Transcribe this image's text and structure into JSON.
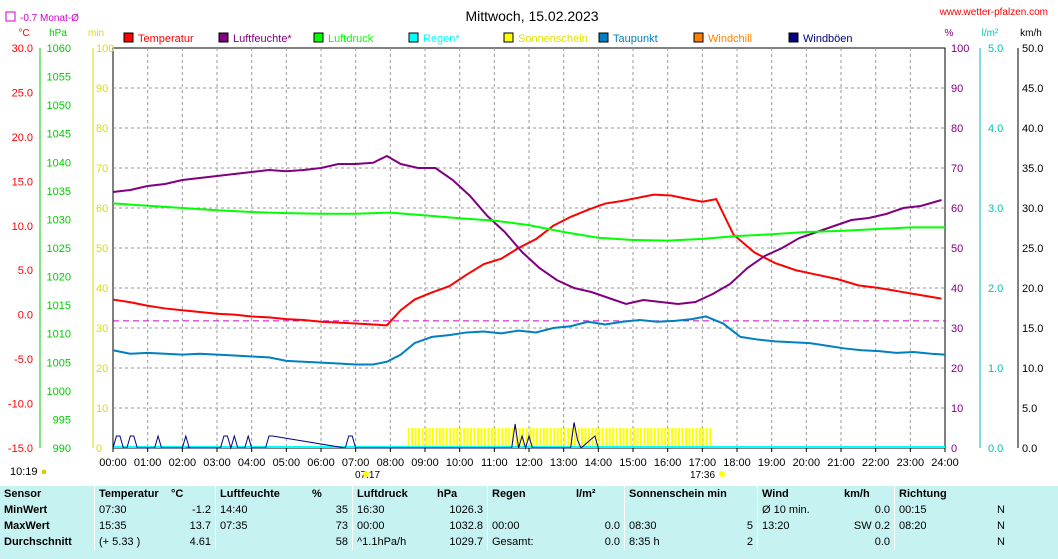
{
  "header": {
    "title": "Mittwoch, 15.02.2023",
    "site": "www.wetter-pfalzen.com",
    "monthavg": "-0.7 Monat-Ø"
  },
  "units": {
    "temp": "°C",
    "pressure": "hPa",
    "sun": "min",
    "percent": "%",
    "rain": "l/m²",
    "wind": "km/h"
  },
  "legend": [
    {
      "label": "Temperatur",
      "color": "#ff0000"
    },
    {
      "label": "Luftfeuchte*",
      "color": "#800080"
    },
    {
      "label": "Luftdruck",
      "color": "#00ff00"
    },
    {
      "label": "Regen*",
      "color": "#00ffff"
    },
    {
      "label": "Sonnenschein",
      "color": "#ffff00"
    },
    {
      "label": "Taupunkt",
      "color": "#0080c0"
    },
    {
      "label": "Windchill",
      "color": "#ff8000"
    },
    {
      "label": "Windböen",
      "color": "#000080"
    }
  ],
  "time_labels": {
    "sunrise": "07:17",
    "sunset": "17:36",
    "clock": "10:19"
  },
  "chart_data": {
    "type": "line",
    "x_ticks": [
      "00:00",
      "01:00",
      "02:00",
      "03:00",
      "04:00",
      "05:00",
      "06:00",
      "07:00",
      "08:00",
      "09:00",
      "10:00",
      "11:00",
      "12:00",
      "13:00",
      "14:00",
      "15:00",
      "16:00",
      "17:00",
      "18:00",
      "19:00",
      "20:00",
      "21:00",
      "22:00",
      "23:00",
      "24:00"
    ],
    "xlim": [
      0,
      24
    ],
    "axes": {
      "temp": {
        "ylim": [
          -15,
          30
        ],
        "ticks": [
          "30.0",
          "25.0",
          "20.0",
          "15.0",
          "10.0",
          "5.0",
          "0.0",
          "-5.0",
          "-10.0",
          "-15.0"
        ],
        "color": "#ff0000"
      },
      "pressure": {
        "ylim": [
          990,
          1060
        ],
        "ticks": [
          "1060",
          "1055",
          "1050",
          "1045",
          "1040",
          "1035",
          "1030",
          "1025",
          "1020",
          "1015",
          "1010",
          "1005",
          "1000",
          "995",
          "990"
        ],
        "color": "#00cc00"
      },
      "sun": {
        "ylim": [
          0,
          100
        ],
        "ticks": [
          "100",
          "90",
          "80",
          "70",
          "60",
          "50",
          "40",
          "30",
          "20",
          "10",
          "0"
        ],
        "color": "#ffff00"
      },
      "humidity": {
        "ylim": [
          0,
          100
        ],
        "ticks": [
          "100",
          "90",
          "80",
          "70",
          "60",
          "50",
          "40",
          "30",
          "20",
          "10",
          "0"
        ],
        "color": "#800080"
      },
      "rain": {
        "ylim": [
          0,
          5
        ],
        "ticks": [
          "5.0",
          "4.0",
          "3.0",
          "2.0",
          "1.0",
          "0.0"
        ],
        "color": "#00c0c0"
      },
      "wind": {
        "ylim": [
          0,
          50
        ],
        "ticks": [
          "50.0",
          "45.0",
          "40.0",
          "35.0",
          "30.0",
          "25.0",
          "20.0",
          "15.0",
          "10.0",
          "5.0",
          "0.0"
        ],
        "color": "#000000"
      }
    },
    "monthly_avg_temp": -0.7,
    "series": [
      {
        "name": "Temperatur",
        "axis": "temp",
        "color": "#ff0000",
        "x": [
          0,
          0.5,
          1,
          1.5,
          2,
          2.5,
          3,
          3.5,
          4,
          4.5,
          5,
          5.5,
          6,
          6.5,
          7,
          7.5,
          7.9,
          8.3,
          8.7,
          9.2,
          9.7,
          10.2,
          10.7,
          11.2,
          11.7,
          12.2,
          12.7,
          13.2,
          13.7,
          14.2,
          14.7,
          15.2,
          15.6,
          16.1,
          16.6,
          17,
          17.4,
          17.9,
          18.5,
          19.1,
          19.7,
          20.3,
          20.9,
          21.5,
          22.1,
          22.7,
          23.3,
          23.9
        ],
        "y": [
          1.7,
          1.4,
          1.0,
          0.7,
          0.5,
          0.3,
          0.1,
          0.0,
          -0.2,
          -0.3,
          -0.5,
          -0.6,
          -0.8,
          -0.9,
          -1.0,
          -1.1,
          -1.2,
          0.5,
          1.7,
          2.5,
          3.2,
          4.5,
          5.7,
          6.3,
          7.5,
          8.5,
          10.0,
          11.0,
          11.8,
          12.5,
          12.8,
          13.2,
          13.5,
          13.4,
          13.0,
          12.7,
          13.0,
          9.0,
          7.0,
          5.8,
          5.0,
          4.5,
          4.0,
          3.3,
          3.0,
          2.6,
          2.2,
          1.8
        ]
      },
      {
        "name": "Luftfeuchte",
        "axis": "humidity",
        "color": "#800080",
        "x": [
          0,
          0.5,
          1,
          1.5,
          2,
          2.5,
          3,
          3.5,
          4,
          4.5,
          5,
          5.5,
          6,
          6.5,
          7,
          7.5,
          7.9,
          8.3,
          8.8,
          9.3,
          9.8,
          10.3,
          10.8,
          11.3,
          11.8,
          12.3,
          12.8,
          13.3,
          13.8,
          14.3,
          14.8,
          15.3,
          15.8,
          16.3,
          16.8,
          17.3,
          17.8,
          18.3,
          18.8,
          19.3,
          19.8,
          20.3,
          20.8,
          21.3,
          21.8,
          22.3,
          22.8,
          23.3,
          23.9
        ],
        "y": [
          64,
          64.5,
          65.5,
          66,
          67,
          67.5,
          68,
          68.5,
          69,
          69.5,
          69.2,
          69.5,
          70,
          71,
          71,
          71.3,
          73,
          71,
          70,
          70,
          67,
          63,
          58,
          54,
          49,
          45,
          42,
          40,
          39,
          37.5,
          36,
          37,
          36.5,
          36,
          36.5,
          38.5,
          41,
          45,
          48,
          50,
          52.5,
          54,
          55.5,
          57,
          57.5,
          58.5,
          60,
          60.5,
          62
        ]
      },
      {
        "name": "Luftdruck",
        "axis": "pressure",
        "color": "#00ff00",
        "x": [
          0,
          1,
          2,
          3,
          4,
          5,
          6,
          7,
          8,
          9,
          10,
          11,
          12,
          13,
          14,
          15,
          16,
          17,
          18,
          19,
          20,
          21,
          22,
          23,
          24
        ],
        "y": [
          1032.8,
          1032.4,
          1032.0,
          1031.6,
          1031.3,
          1031.1,
          1031.0,
          1031.0,
          1031.2,
          1030.7,
          1030.2,
          1029.8,
          1029.0,
          1027.8,
          1026.8,
          1026.4,
          1026.3,
          1026.6,
          1027.1,
          1027.4,
          1027.8,
          1028.0,
          1028.3,
          1028.6,
          1028.6
        ]
      },
      {
        "name": "Taupunkt",
        "axis": "temp",
        "color": "#0080c0",
        "x": [
          0,
          0.5,
          1,
          1.5,
          2,
          2.5,
          3,
          3.5,
          4,
          4.5,
          5,
          5.5,
          6,
          6.5,
          7,
          7.5,
          7.9,
          8.3,
          8.7,
          9.2,
          9.7,
          10.2,
          10.7,
          11.2,
          11.7,
          12.2,
          12.7,
          13.2,
          13.7,
          14.2,
          14.7,
          15.2,
          15.7,
          16.2,
          16.7,
          17.1,
          17.6,
          18.1,
          18.6,
          19.1,
          19.6,
          20.1,
          20.6,
          21.1,
          21.6,
          22.1,
          22.6,
          23.1,
          23.6,
          24
        ],
        "y": [
          -4.0,
          -4.4,
          -4.3,
          -4.4,
          -4.5,
          -4.4,
          -4.5,
          -4.6,
          -4.7,
          -4.8,
          -5.2,
          -5.3,
          -5.4,
          -5.5,
          -5.6,
          -5.6,
          -5.3,
          -4.5,
          -3.2,
          -2.5,
          -2.3,
          -2.0,
          -1.9,
          -2.1,
          -1.8,
          -2.0,
          -1.5,
          -1.3,
          -0.8,
          -1.1,
          -0.8,
          -0.6,
          -0.8,
          -0.7,
          -0.5,
          -0.2,
          -1.0,
          -2.5,
          -2.8,
          -3.0,
          -3.1,
          -3.2,
          -3.5,
          -3.8,
          -4.0,
          -4.1,
          -4.3,
          -4.2,
          -4.4,
          -4.5
        ]
      },
      {
        "name": "Windböen",
        "axis": "wind",
        "color": "#000080",
        "x": [
          0,
          0.1,
          0.2,
          0.3,
          0.4,
          0.5,
          0.6,
          0.7,
          0.8,
          1.2,
          1.3,
          1.4,
          2.0,
          2.1,
          2.2,
          2.1,
          3.1,
          3.2,
          3.3,
          3.4,
          3.5,
          3.6,
          3.8,
          3.9,
          4.0,
          4.4,
          4.5,
          4.6,
          6.7,
          6.8,
          6.9,
          7.0,
          11.5,
          11.6,
          11.7,
          11.8,
          11.9,
          12.0,
          12.1,
          12.2,
          13.2,
          13.3,
          13.4,
          13.5,
          13.9,
          14.0
        ],
        "y": [
          0,
          1.5,
          1.5,
          0,
          0,
          1.5,
          1.5,
          0,
          0,
          0,
          1.5,
          0,
          0,
          1.5,
          0,
          0,
          0,
          1.5,
          1.5,
          0,
          1.5,
          0,
          0,
          1.5,
          0,
          0,
          1.5,
          1.5,
          0,
          1.5,
          1.5,
          0,
          0,
          3.0,
          0,
          1.5,
          0,
          1.5,
          0,
          0,
          0,
          3.2,
          1.0,
          0,
          1.5,
          0
        ]
      }
    ],
    "sunshine_bars": {
      "x_start": 8.5,
      "x_end": 17.2,
      "value": 2.5
    }
  },
  "stats": {
    "headers": [
      "Sensor",
      "Temperatur",
      "°C",
      "Luftfeuchte",
      "%",
      "Luftdruck",
      "hPa",
      "Regen",
      "l/m²",
      "Sonnenschein min",
      "",
      "Wind",
      "km/h",
      "Richtung",
      ""
    ],
    "rows": [
      [
        "MinWert",
        "07:30",
        "-1.2",
        "14:40",
        "35",
        "16:30",
        "1026.3",
        "",
        "",
        "",
        "",
        "Ø 10 min.",
        "0.0",
        "00:15",
        "N"
      ],
      [
        "MaxWert",
        "15:35",
        "13.7",
        "07:35",
        "73",
        "00:00",
        "1032.8",
        "00:00",
        "0.0",
        "08:30",
        "5",
        "13:20",
        "SW 0.2",
        "08:20",
        "N"
      ],
      [
        "Durchschnitt",
        "(+ 5.33 )",
        "4.61",
        "",
        "58",
        "^1.1hPa/h",
        "1029.7",
        "Gesamt:",
        "0.0",
        "8:35 h",
        "2",
        "",
        "0.0",
        "",
        "N"
      ]
    ]
  }
}
